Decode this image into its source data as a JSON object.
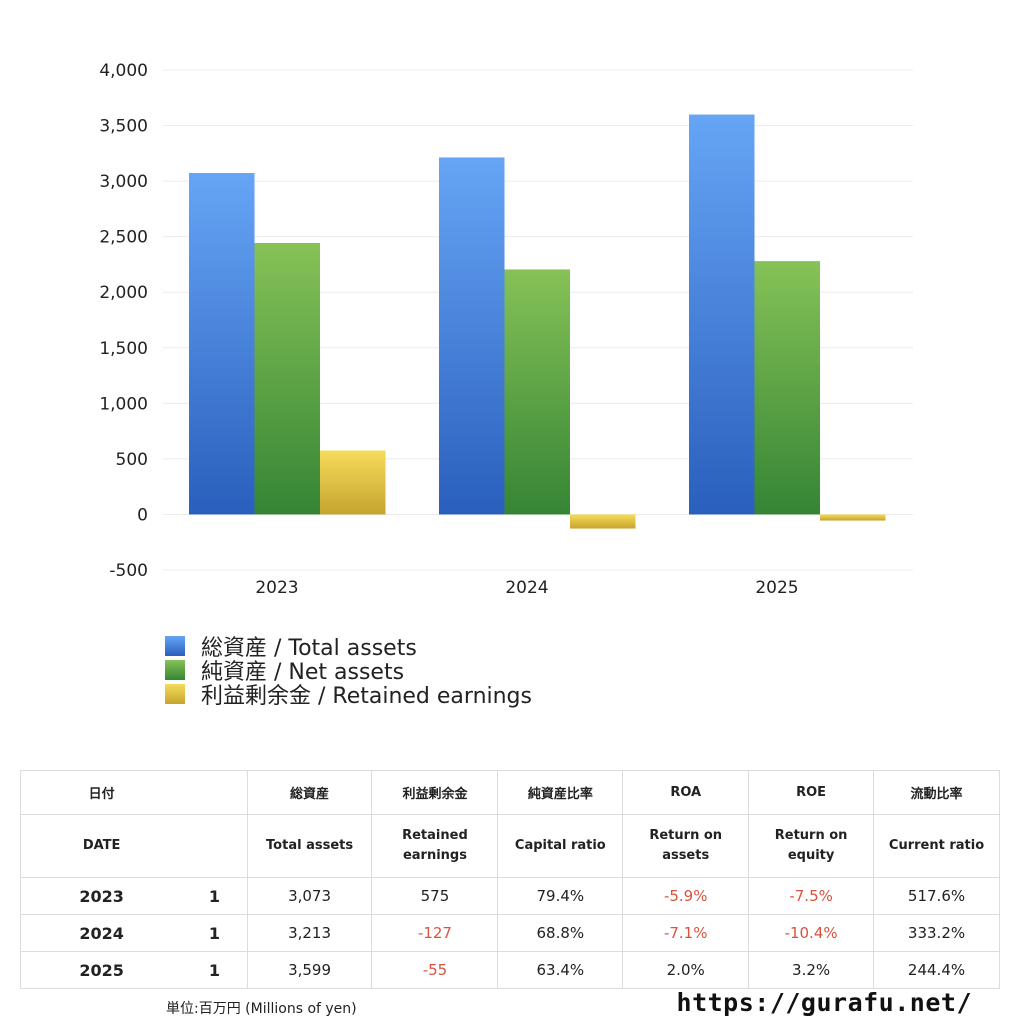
{
  "chart_data": {
    "type": "bar",
    "categories": [
      "2023",
      "2024",
      "2025"
    ],
    "series": [
      {
        "name": "総資産 / Total assets",
        "values": [
          3073,
          3213,
          3599
        ],
        "color_top": "#66a5f5",
        "color_bottom": "#2a5fbd"
      },
      {
        "name": "純資産 / Net assets",
        "values": [
          2443,
          2205,
          2280
        ],
        "color_top": "#86c257",
        "color_bottom": "#358535"
      },
      {
        "name": "利益剰余金 / Retained earnings",
        "values": [
          575,
          -127,
          -55
        ],
        "color_top": "#f5dc5a",
        "color_bottom": "#c6a42f"
      }
    ],
    "ylim": [
      -500,
      4000
    ],
    "yticks": [
      4000,
      3500,
      3000,
      2500,
      2000,
      1500,
      1000,
      500,
      0,
      -500
    ],
    "ytick_labels": [
      "4,000",
      "3,500",
      "3,000",
      "2,500",
      "2,000",
      "1,500",
      "1,000",
      "500",
      "0",
      "-500"
    ],
    "grid": true,
    "legend_position": "bottom-left"
  },
  "table": {
    "header_ja": [
      "日付",
      "",
      "総資産",
      "利益剰余金",
      "純資産比率",
      "ROA",
      "ROE",
      "流動比率"
    ],
    "header_en": [
      "DATE",
      "",
      "Total assets",
      "Retained earnings",
      "Capital ratio",
      "Return on assets",
      "Return on equity",
      "Current ratio"
    ],
    "rows": [
      {
        "year": "2023",
        "month": "1",
        "total_assets": "3,073",
        "retained": "575",
        "capital_ratio": "79.4%",
        "roa": "-5.9%",
        "roe": "-7.5%",
        "current_ratio": "517.6%"
      },
      {
        "year": "2024",
        "month": "1",
        "total_assets": "3,213",
        "retained": "-127",
        "capital_ratio": "68.8%",
        "roa": "-7.1%",
        "roe": "-10.4%",
        "current_ratio": "333.2%"
      },
      {
        "year": "2025",
        "month": "1",
        "total_assets": "3,599",
        "retained": "-55",
        "capital_ratio": "63.4%",
        "roa": "2.0%",
        "roe": "3.2%",
        "current_ratio": "244.4%"
      }
    ]
  },
  "footer": {
    "unit": "単位:百万円 (Millions of yen)",
    "url": "https://gurafu.net/"
  },
  "colors": {
    "negative": "#d9533f"
  }
}
